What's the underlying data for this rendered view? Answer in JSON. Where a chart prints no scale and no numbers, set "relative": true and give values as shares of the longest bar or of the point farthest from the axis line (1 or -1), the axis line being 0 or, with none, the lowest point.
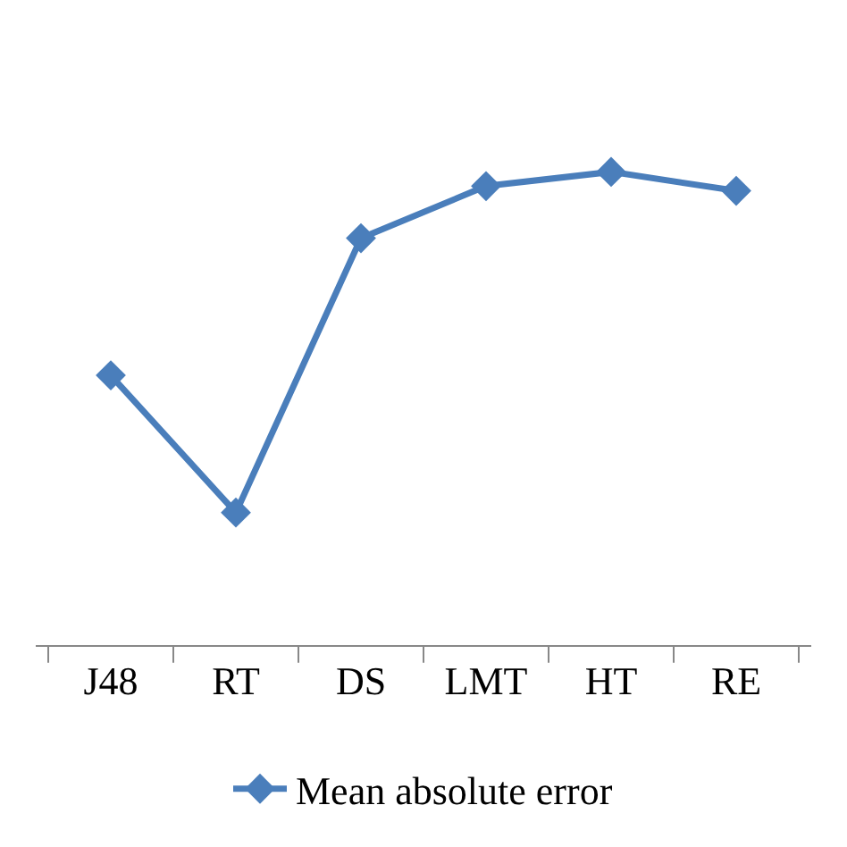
{
  "chart_data": {
    "type": "line",
    "relative": true,
    "categories": [
      "J48",
      "RT",
      "DS",
      "LMT",
      "HT",
      "RE"
    ],
    "series": [
      {
        "name": "Mean absolute error",
        "color": "#4a7ebb",
        "values": [
          0.57,
          0.28,
          0.86,
          0.97,
          1.0,
          0.96
        ]
      }
    ],
    "marker": "diamond",
    "legend": "bottom"
  }
}
